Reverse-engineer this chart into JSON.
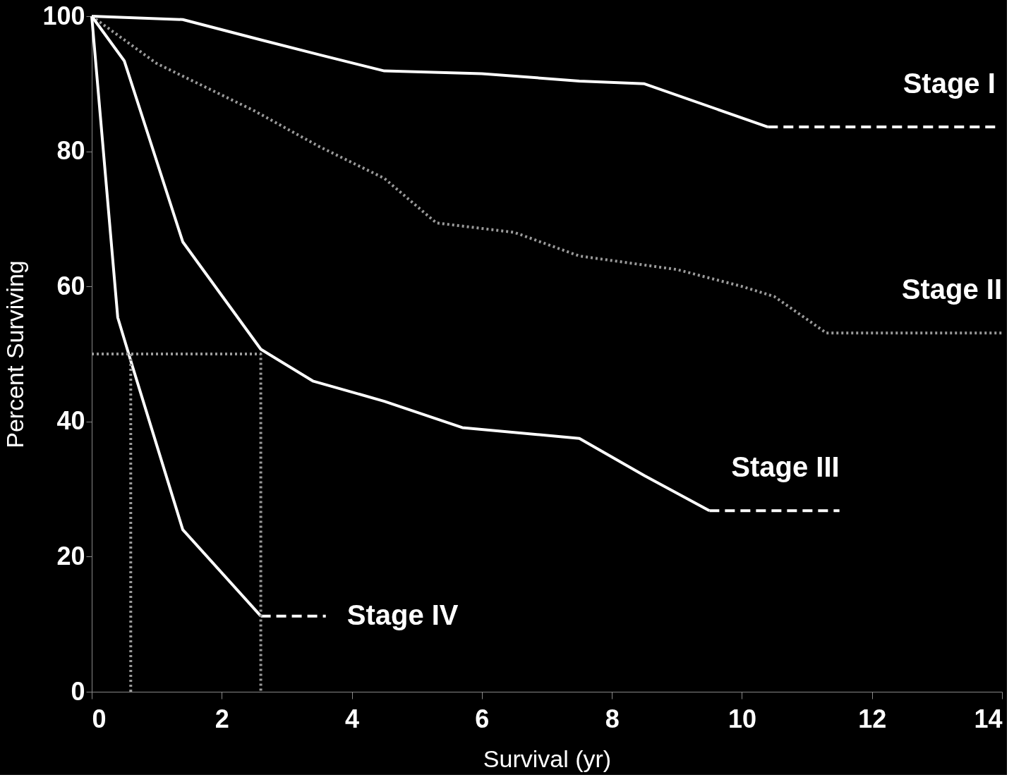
{
  "chart_data": {
    "type": "line",
    "xlabel": "Survival (yr)",
    "ylabel": "Percent Surviving",
    "xlim": [
      0,
      14
    ],
    "ylim": [
      0,
      100
    ],
    "xticks": [
      0,
      2,
      4,
      6,
      8,
      10,
      12,
      14
    ],
    "yticks": [
      0,
      20,
      40,
      60,
      80,
      100
    ],
    "grid": false,
    "legend": false,
    "marker": "none",
    "series": [
      {
        "color": "#ffffff",
        "line_style": "solid",
        "x": [
          0,
          1.4,
          2.6,
          3.5,
          4.5,
          6,
          7.5,
          8.5,
          10.4
        ],
        "values": [
          100,
          99.5,
          96.5,
          94.3,
          91.9,
          91.5,
          90.4,
          90,
          83.6
        ]
      },
      {
        "name": "Stage I",
        "color": "#ffffff",
        "line_style": "dashed",
        "x": [
          10.4,
          13.9
        ],
        "values": [
          83.6,
          83.6
        ]
      },
      {
        "name": "Stage II",
        "color": "#9a9a9a",
        "line_style": "dotted",
        "x": [
          0,
          1,
          2.5,
          3.5,
          4.5,
          5.3,
          6.5,
          7.5,
          9,
          10,
          10.5,
          11.3,
          14
        ],
        "values": [
          100,
          93,
          86,
          80.7,
          76,
          69.4,
          68,
          64.5,
          62.5,
          60,
          58.5,
          53.1,
          53.1
        ]
      },
      {
        "color": "#ffffff",
        "line_style": "solid",
        "x": [
          0,
          0.5,
          1.4,
          2.6,
          3.4,
          4.5,
          5.7,
          7.5,
          8.5,
          9.5
        ],
        "values": [
          100,
          93.4,
          66.6,
          50.7,
          46,
          43,
          39.1,
          37.5,
          32,
          26.8
        ]
      },
      {
        "name": "Stage III",
        "color": "#ffffff",
        "line_style": "dashed",
        "x": [
          9.5,
          11.5
        ],
        "values": [
          26.8,
          26.8
        ]
      },
      {
        "color": "#ffffff",
        "line_style": "solid",
        "x": [
          0,
          0.4,
          0.6,
          1.4,
          2.6
        ],
        "values": [
          100,
          55.4,
          49,
          24,
          11.2
        ]
      },
      {
        "name": "Stage IV",
        "color": "#ffffff",
        "line_style": "dashed",
        "x": [
          2.6,
          3.6
        ],
        "values": [
          11.2,
          11.2
        ]
      },
      {
        "color": "#9a9a9a",
        "line_style": "dotted",
        "x": [
          0,
          2.6,
          2.6
        ],
        "values": [
          50,
          50,
          0
        ]
      },
      {
        "color": "#9a9a9a",
        "line_style": "dotted",
        "x": [
          0.6,
          0.6
        ],
        "values": [
          0,
          50
        ]
      }
    ]
  }
}
